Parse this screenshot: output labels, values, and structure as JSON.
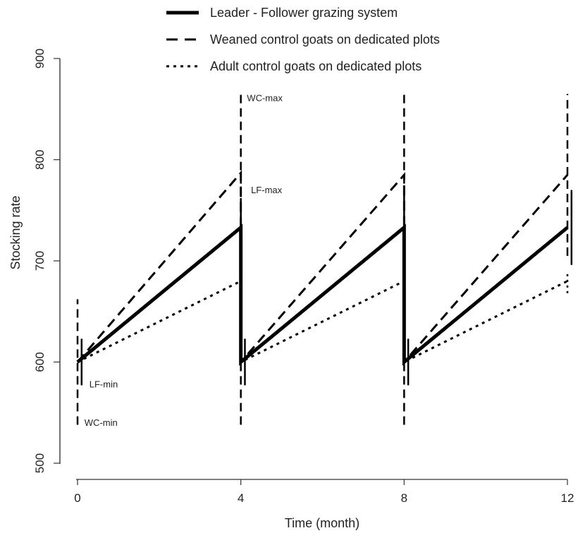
{
  "chart_data": {
    "type": "line",
    "xlabel": "Time (month)",
    "ylabel": "Stocking rate",
    "xlim": [
      0,
      12
    ],
    "ylim": [
      500,
      900
    ],
    "x_ticks": [
      0,
      4,
      8,
      12
    ],
    "y_ticks": [
      500,
      600,
      700,
      800,
      900
    ],
    "grid": false,
    "legend_position": "top",
    "series": [
      {
        "name": "Leader - Follower grazing system",
        "style": "solid",
        "color": "#000000",
        "x": [
          0,
          4,
          4,
          8,
          8,
          12
        ],
        "y": [
          600,
          733,
          600,
          733,
          600,
          733
        ]
      },
      {
        "name": "Weaned control goats on dedicated plots",
        "style": "dashed",
        "color": "#000000",
        "x": [
          0,
          4,
          4,
          8,
          8,
          12
        ],
        "y": [
          600,
          787,
          600,
          785,
          600,
          785
        ]
      },
      {
        "name": "Adult control goats on dedicated plots",
        "style": "dotted",
        "color": "#000000",
        "x": [
          0,
          4,
          4,
          8,
          8,
          12
        ],
        "y": [
          600,
          680,
          600,
          680,
          600,
          680
        ]
      }
    ],
    "ranges": [
      {
        "series": "Leader - Follower grazing system",
        "x": 0.1,
        "low": 577,
        "high": 623
      },
      {
        "series": "Leader - Follower grazing system",
        "x": 4.0,
        "low": 696,
        "high": 762
      },
      {
        "series": "Leader - Follower grazing system",
        "x": 4.1,
        "low": 577,
        "high": 623
      },
      {
        "series": "Leader - Follower grazing system",
        "x": 8.0,
        "low": 696,
        "high": 770
      },
      {
        "series": "Leader - Follower grazing system",
        "x": 8.1,
        "low": 577,
        "high": 623
      },
      {
        "series": "Leader - Follower grazing system",
        "x": 12.1,
        "low": 696,
        "high": 770
      },
      {
        "series": "Weaned control goats on dedicated plots",
        "x": 0.0,
        "low": 538,
        "high": 662
      },
      {
        "series": "Weaned control goats on dedicated plots",
        "x": 4.0,
        "low": 538,
        "high": 865
      },
      {
        "series": "Weaned control goats on dedicated plots",
        "x": 8.0,
        "low": 538,
        "high": 865
      },
      {
        "series": "Weaned control goats on dedicated plots",
        "x": 12.0,
        "low": 705,
        "high": 865
      },
      {
        "series": "Adult control goats on dedicated plots",
        "x": 4.0,
        "low": 668,
        "high": 690
      },
      {
        "series": "Adult control goats on dedicated plots",
        "x": 8.0,
        "low": 668,
        "high": 690
      },
      {
        "series": "Adult control goats on dedicated plots",
        "x": 12.0,
        "low": 668,
        "high": 690
      }
    ],
    "annotations": [
      {
        "text": "WC-max",
        "x": 4.08,
        "y": 858
      },
      {
        "text": "LF-max",
        "x": 4.18,
        "y": 767
      },
      {
        "text": "LF-min",
        "x": 0.22,
        "y": 575
      },
      {
        "text": "WC-min",
        "x": 0.1,
        "y": 537
      }
    ]
  }
}
